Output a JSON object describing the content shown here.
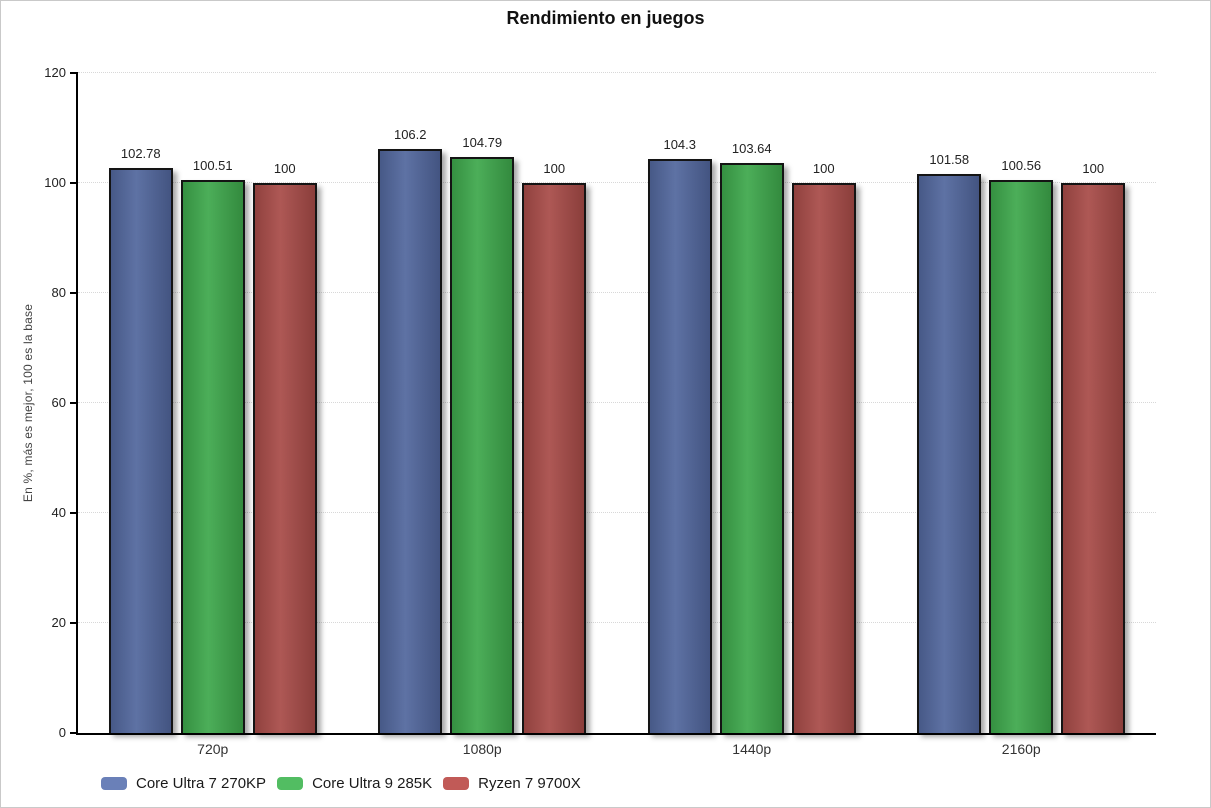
{
  "title": "Rendimiento en juegos",
  "chart_data": {
    "type": "bar",
    "title": "Rendimiento en juegos",
    "xlabel": "",
    "ylabel": "En %, más es mejor, 100 es la base",
    "ylim": [
      0,
      120
    ],
    "yticks": [
      "0",
      "20",
      "40",
      "60",
      "80",
      "100",
      "120"
    ],
    "grid": "horizontal-dotted",
    "legend_position": "bottom-left",
    "categories": [
      "720p",
      "1080p",
      "1440p",
      "2160p"
    ],
    "series": [
      {
        "name": "Core Ultra 7 270KP",
        "color": "#52679d",
        "legend_color": "#6a80b8",
        "values": [
          102.78,
          106.2,
          104.3,
          101.58
        ],
        "labels": [
          "102.78",
          "106.2",
          "104.3",
          "101.58"
        ]
      },
      {
        "name": "Core Ultra 9 285K",
        "color": "#3ea84c",
        "legend_color": "#52bd62",
        "values": [
          100.51,
          104.79,
          103.64,
          100.56
        ],
        "labels": [
          "100.51",
          "104.79",
          "103.64",
          "100.56"
        ]
      },
      {
        "name": "Ryzen 7 9700X",
        "color": "#a84b48",
        "legend_color": "#c15a57",
        "values": [
          100,
          100,
          100,
          100
        ],
        "labels": [
          "100",
          "100",
          "100",
          "100"
        ]
      }
    ]
  }
}
